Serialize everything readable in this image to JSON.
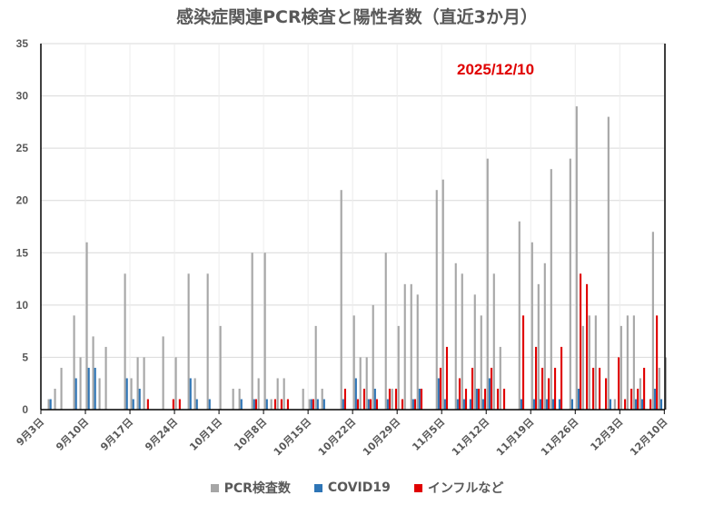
{
  "chart_data": {
    "type": "bar",
    "title": "感染症関連PCR検査と陽性者数（直近3か月）",
    "annotation": "2025/12/10",
    "xlabel": "",
    "ylabel": "",
    "ylim": [
      0,
      35
    ],
    "yticks": [
      0,
      5,
      10,
      15,
      20,
      25,
      30,
      35
    ],
    "grid": true,
    "legend": "bottom",
    "categories": [
      "9月3日",
      "9月4日",
      "9月5日",
      "9月6日",
      "9月7日",
      "9月8日",
      "9月9日",
      "9月10日",
      "9月11日",
      "9月12日",
      "9月13日",
      "9月14日",
      "9月15日",
      "9月16日",
      "9月17日",
      "9月18日",
      "9月19日",
      "9月20日",
      "9月21日",
      "9月22日",
      "9月23日",
      "9月24日",
      "9月25日",
      "9月26日",
      "9月27日",
      "9月28日",
      "9月29日",
      "9月30日",
      "10月1日",
      "10月2日",
      "10月3日",
      "10月4日",
      "10月5日",
      "10月6日",
      "10月7日",
      "10月8日",
      "10月9日",
      "10月10日",
      "10月11日",
      "10月12日",
      "10月13日",
      "10月14日",
      "10月15日",
      "10月16日",
      "10月17日",
      "10月18日",
      "10月19日",
      "10月20日",
      "10月21日",
      "10月22日",
      "10月23日",
      "10月24日",
      "10月25日",
      "10月26日",
      "10月27日",
      "10月28日",
      "10月29日",
      "10月30日",
      "10月31日",
      "11月1日",
      "11月2日",
      "11月3日",
      "11月4日",
      "11月5日",
      "11月6日",
      "11月7日",
      "11月8日",
      "11月9日",
      "11月10日",
      "11月11日",
      "11月12日",
      "11月13日",
      "11月14日",
      "11月15日",
      "11月16日",
      "11月17日",
      "11月18日",
      "11月19日",
      "11月20日",
      "11月21日",
      "11月22日",
      "11月23日",
      "11月24日",
      "11月25日",
      "11月26日",
      "11月27日",
      "11月28日",
      "11月29日",
      "11月30日",
      "12月1日",
      "12月2日",
      "12月3日",
      "12月4日",
      "12月5日",
      "12月6日",
      "12月7日",
      "12月8日",
      "12月9日",
      "12月10日"
    ],
    "tick_labels": [
      "9月3日",
      "9月10日",
      "9月17日",
      "9月24日",
      "10月1日",
      "10月8日",
      "10月15日",
      "10月22日",
      "10月29日",
      "11月5日",
      "11月12日",
      "11月19日",
      "11月26日",
      "12月3日",
      "12月10日"
    ],
    "series": [
      {
        "name": "PCR検査数",
        "color": "#a6a6a6",
        "values": [
          0,
          1,
          2,
          4,
          0,
          9,
          5,
          16,
          7,
          3,
          6,
          0,
          0,
          13,
          3,
          5,
          5,
          0,
          0,
          7,
          0,
          5,
          0,
          13,
          3,
          0,
          13,
          0,
          8,
          0,
          2,
          2,
          0,
          15,
          3,
          15,
          1,
          3,
          3,
          0,
          0,
          2,
          1,
          8,
          2,
          0,
          0,
          21,
          0,
          9,
          5,
          5,
          10,
          0,
          15,
          2,
          8,
          12,
          12,
          11,
          0,
          0,
          21,
          22,
          0,
          14,
          13,
          0,
          11,
          9,
          24,
          13,
          6,
          0,
          0,
          18,
          0,
          16,
          12,
          14,
          23,
          0,
          0,
          24,
          29,
          8,
          9,
          9,
          0,
          28,
          1,
          8,
          9,
          9,
          3,
          0,
          17,
          4,
          5
        ]
      },
      {
        "name": "COVID19",
        "color": "#2e75b6",
        "values": [
          0,
          1,
          0,
          0,
          0,
          3,
          0,
          4,
          4,
          0,
          0,
          0,
          0,
          3,
          1,
          2,
          0,
          0,
          0,
          0,
          0,
          0,
          0,
          3,
          1,
          0,
          1,
          0,
          0,
          0,
          0,
          1,
          0,
          1,
          0,
          1,
          0,
          0,
          0,
          0,
          0,
          0,
          1,
          1,
          1,
          0,
          0,
          1,
          0,
          3,
          0,
          1,
          2,
          0,
          1,
          0,
          0,
          0,
          1,
          2,
          0,
          0,
          3,
          1,
          0,
          1,
          1,
          1,
          2,
          1,
          3,
          0,
          0,
          0,
          0,
          1,
          0,
          1,
          1,
          1,
          1,
          1,
          0,
          1,
          2,
          0,
          0,
          0,
          0,
          1,
          0,
          0,
          0,
          1,
          1,
          0,
          2,
          1,
          0
        ]
      },
      {
        "name": "インフルなど",
        "color": "#e00000",
        "values": [
          0,
          0,
          0,
          0,
          0,
          0,
          0,
          0,
          0,
          0,
          0,
          0,
          0,
          0,
          0,
          0,
          1,
          0,
          0,
          0,
          1,
          1,
          0,
          0,
          0,
          0,
          0,
          0,
          0,
          0,
          0,
          0,
          0,
          1,
          0,
          0,
          1,
          1,
          1,
          0,
          0,
          0,
          1,
          0,
          0,
          0,
          0,
          2,
          0,
          1,
          2,
          1,
          1,
          0,
          2,
          2,
          1,
          0,
          1,
          2,
          0,
          0,
          4,
          6,
          0,
          3,
          2,
          4,
          2,
          2,
          4,
          2,
          2,
          0,
          0,
          9,
          0,
          6,
          4,
          3,
          4,
          6,
          0,
          0,
          13,
          12,
          4,
          4,
          3,
          0,
          5,
          1,
          2,
          2,
          4,
          1,
          9,
          0,
          0
        ]
      }
    ]
  }
}
